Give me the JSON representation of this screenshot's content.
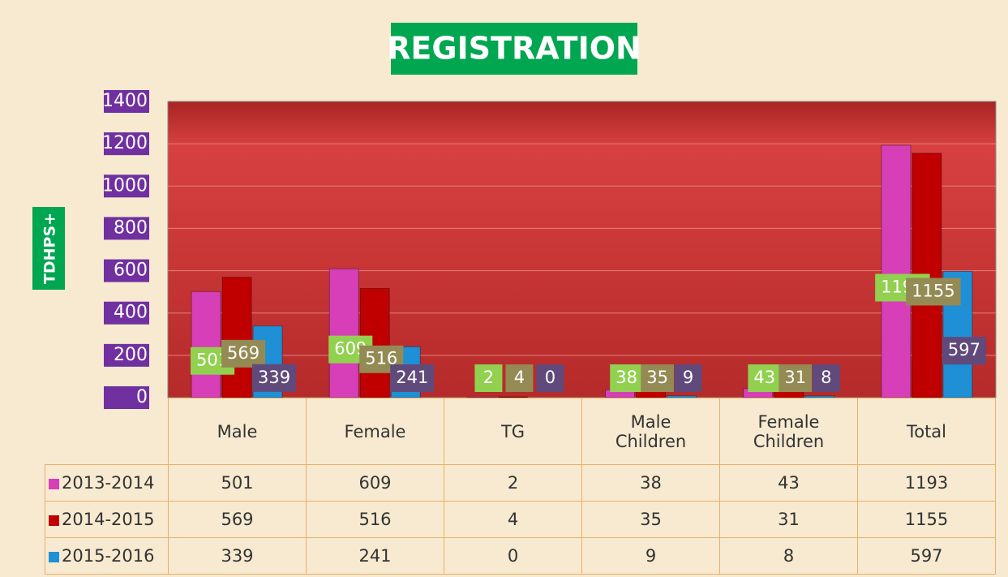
{
  "chart_data": {
    "type": "bar",
    "title": "REGISTRATION",
    "y_label": "TDHPS+",
    "categories": [
      "Male",
      "Female",
      "TG",
      "Male Children",
      "Female Children",
      "Total"
    ],
    "series": [
      {
        "name": "2013-2014",
        "color": "#d63fb8",
        "label_color": "#92d050",
        "values": [
          501,
          609,
          2,
          38,
          43,
          1193
        ]
      },
      {
        "name": "2014-2015",
        "color": "#c00000",
        "label_color": "#948a54",
        "values": [
          569,
          516,
          4,
          35,
          31,
          1155
        ]
      },
      {
        "name": "2015-2016",
        "color": "#1f8fd6",
        "label_color": "#604a7b",
        "values": [
          339,
          241,
          0,
          9,
          8,
          597
        ]
      }
    ],
    "ylim": [
      0,
      1400
    ],
    "yticks": [
      0,
      200,
      400,
      600,
      800,
      1000,
      1200,
      1400
    ],
    "grid": true,
    "legend": "table"
  }
}
